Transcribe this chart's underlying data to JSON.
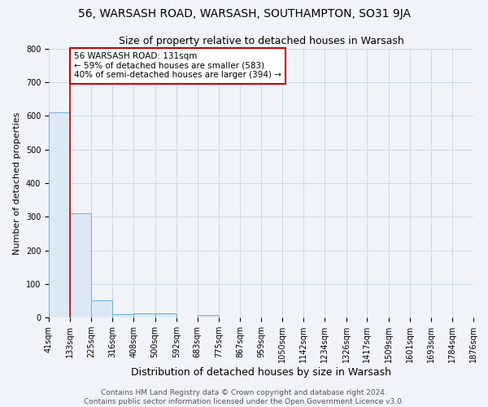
{
  "title": "56, WARSASH ROAD, WARSASH, SOUTHAMPTON, SO31 9JA",
  "subtitle": "Size of property relative to detached houses in Warsash",
  "xlabel": "Distribution of detached houses by size in Warsash",
  "ylabel": "Number of detached properties",
  "bin_edges": [
    41,
    133,
    225,
    316,
    408,
    500,
    592,
    683,
    775,
    867,
    959,
    1050,
    1142,
    1234,
    1326,
    1417,
    1509,
    1601,
    1693,
    1784,
    1876
  ],
  "bin_counts": [
    610,
    310,
    50,
    10,
    13,
    13,
    0,
    7,
    0,
    0,
    0,
    0,
    0,
    0,
    0,
    0,
    0,
    0,
    0,
    0
  ],
  "bar_facecolor": "#dce9f5",
  "bar_edgecolor": "#6aaed6",
  "property_line_x": 131,
  "property_line_color": "#cc0000",
  "annotation_text": "56 WARSASH ROAD: 131sqm\n← 59% of detached houses are smaller (583)\n40% of semi-detached houses are larger (394) →",
  "annotation_box_color": "white",
  "annotation_box_edgecolor": "#cc0000",
  "annotation_fontsize": 7.5,
  "ylim": [
    0,
    800
  ],
  "yticks": [
    0,
    100,
    200,
    300,
    400,
    500,
    600,
    700,
    800
  ],
  "footer_line1": "Contains HM Land Registry data © Crown copyright and database right 2024.",
  "footer_line2": "Contains public sector information licensed under the Open Government Licence v3.0.",
  "background_color": "#f0f4fa",
  "grid_color": "#c8d8ea",
  "title_fontsize": 10,
  "subtitle_fontsize": 9,
  "xlabel_fontsize": 9,
  "ylabel_fontsize": 8,
  "tick_fontsize": 7,
  "footer_fontsize": 6.5
}
